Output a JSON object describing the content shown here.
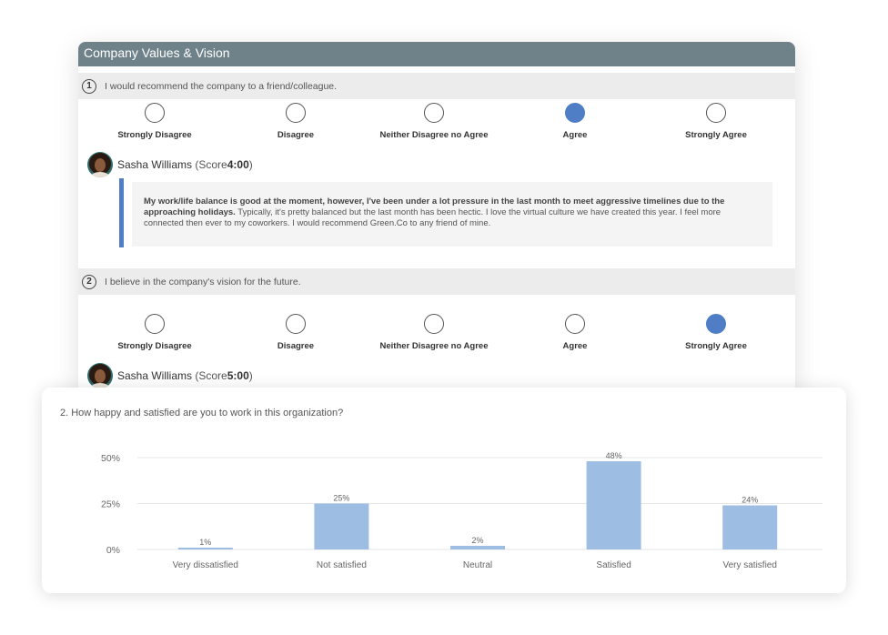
{
  "survey": {
    "title": "Company Values & Vision",
    "questions": [
      {
        "number": "1",
        "text": "I would recommend the company to a friend/colleague.",
        "options": [
          "Strongly Disagree",
          "Disagree",
          "Neither Disagree no Agree",
          "Agree",
          "Strongly Agree"
        ],
        "selected_index": 3,
        "reviewer": {
          "name": "Sasha Williams",
          "score_prefix": "(Score ",
          "score_value": "4:00",
          "score_suffix": ")"
        },
        "comment": {
          "bold": "My work/life balance is good at the moment, however, I've been under a lot pressure in the last month to meet aggressive timelines due to the approaching holidays.",
          "rest": " Typically, it's pretty balanced but the last month has been hectic. I love the virtual culture we have created this year. I feel more connected then ever to my coworkers. I would recommend Green.Co to any friend of mine."
        }
      },
      {
        "number": "2",
        "text": "I believe in the company's vision for the future.",
        "options": [
          "Strongly Disagree",
          "Disagree",
          "Neither Disagree no Agree",
          "Agree",
          "Strongly Agree"
        ],
        "selected_index": 4,
        "reviewer": {
          "name": "Sasha Williams",
          "score_prefix": "(Score ",
          "score_value": "5:00",
          "score_suffix": ")"
        }
      }
    ]
  },
  "chart_card": {
    "title": "2. How happy and satisfied are you to work in this organization?"
  },
  "chart_data": {
    "type": "bar",
    "title": "2. How happy and satisfied are you to work in this organization?",
    "categories": [
      "Very dissatisfied",
      "Not satisfied",
      "Neutral",
      "Satisfied",
      "Very satisfied"
    ],
    "values": [
      1,
      25,
      2,
      48,
      24
    ],
    "data_labels": [
      "1%",
      "25%",
      "2%",
      "48%",
      "24%"
    ],
    "y_ticks": [
      0,
      25,
      50
    ],
    "y_tick_labels": [
      "0%",
      "25%",
      "50%"
    ],
    "ylim": [
      0,
      50
    ],
    "grid": true,
    "bar_color": "#9dbde3"
  },
  "colors": {
    "header": "#6f8289",
    "accent": "#4f7ec6",
    "question_bar": "#ececec"
  }
}
